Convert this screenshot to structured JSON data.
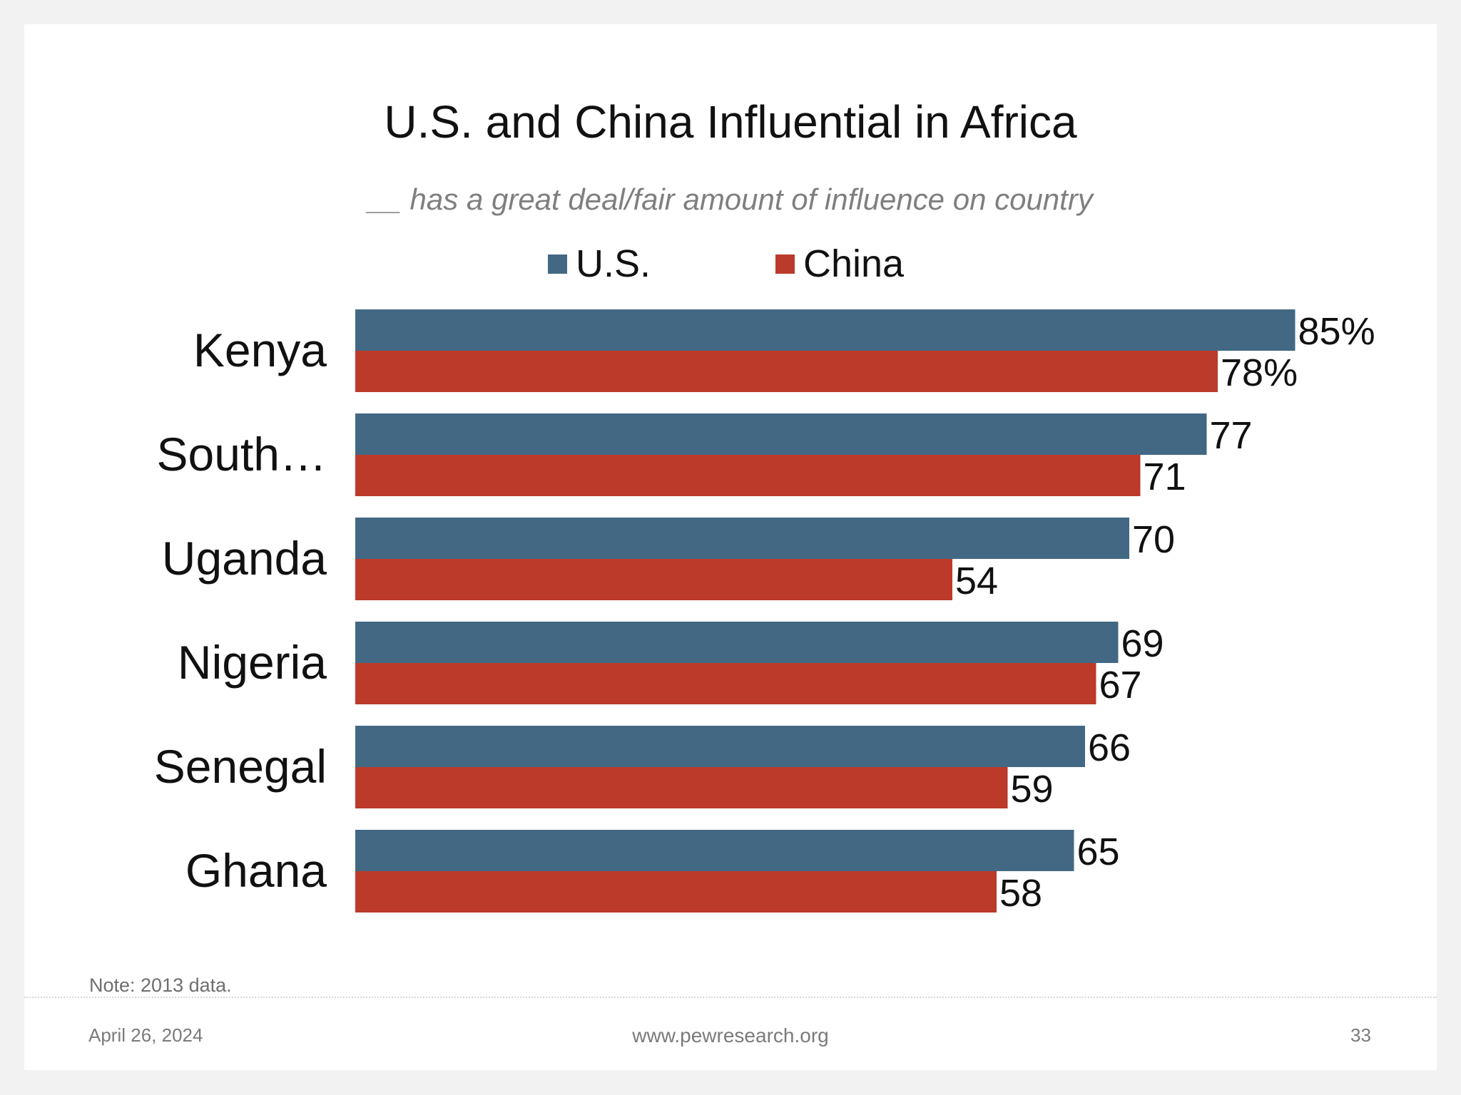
{
  "slide": {
    "note": "Note: 2013 data.",
    "footer": {
      "date": "April 26, 2024",
      "site": "www.pewresearch.org",
      "page_number": "33"
    }
  },
  "colors": {
    "us": "#426884",
    "china": "#bc3a29",
    "background": "#ffffff"
  },
  "chart_data": {
    "type": "bar",
    "orientation": "horizontal",
    "title": "U.S. and China Influential in Africa",
    "subtitle": "__ has a great deal/fair amount of influence on country",
    "categories": [
      "Kenya",
      "South…",
      "Uganda",
      "Nigeria",
      "Senegal",
      "Ghana"
    ],
    "series": [
      {
        "name": "U.S.",
        "color": "#426884",
        "values": [
          85,
          77,
          70,
          69,
          66,
          65
        ],
        "labels": [
          "85%",
          "77",
          "70",
          "69",
          "66",
          "65"
        ]
      },
      {
        "name": "China",
        "color": "#bc3a29",
        "values": [
          78,
          71,
          54,
          67,
          59,
          58
        ],
        "labels": [
          "78%",
          "71",
          "54",
          "67",
          "59",
          "58"
        ]
      }
    ],
    "xlim": [
      0,
      85
    ],
    "legend_position": "top",
    "grid": false
  }
}
